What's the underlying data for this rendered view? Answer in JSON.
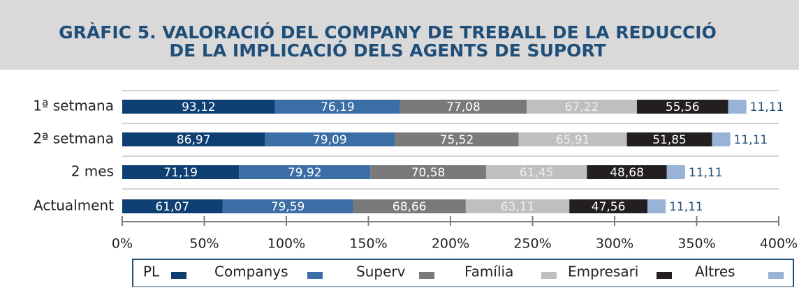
{
  "chart_data": {
    "type": "stacked-bar-horizontal",
    "title": [
      "GRÀFIC 5. VALORACIÓ DEL COMPANY DE TREBALL DE LA REDUCCIÓ",
      "DE LA IMPLICACIÓ DELS AGENTS DE SUPORT"
    ],
    "categories": [
      "1ª setmana",
      "2ª setmana",
      "2 mes",
      "Actualment"
    ],
    "series": [
      {
        "name": "PL",
        "color": "#0d3f73",
        "values": [
          93.12,
          86.97,
          71.19,
          61.07
        ],
        "value_labels": [
          "93,12",
          "86,97",
          "71,19",
          "61,07"
        ]
      },
      {
        "name": "Companys",
        "color": "#3a6ea5",
        "values": [
          76.19,
          79.09,
          79.92,
          79.59
        ],
        "value_labels": [
          "76,19",
          "79,09",
          "79,92",
          "79,59"
        ]
      },
      {
        "name": "Superv",
        "color": "#7a7a7a",
        "values": [
          77.08,
          75.52,
          70.58,
          68.66
        ],
        "value_labels": [
          "77,08",
          "75,52",
          "70,58",
          "68,66"
        ]
      },
      {
        "name": "Família",
        "color": "#bfbfbf",
        "values": [
          67.22,
          65.91,
          61.45,
          63.11
        ],
        "value_labels": [
          "67,22",
          "65,91",
          "61,45",
          "63,11"
        ]
      },
      {
        "name": "Empresari",
        "color": "#231f20",
        "values": [
          55.56,
          51.85,
          48.68,
          47.56
        ],
        "value_labels": [
          "55,56",
          "51,85",
          "48,68",
          "47,56"
        ]
      },
      {
        "name": "Altres",
        "color": "#98b3d6",
        "values": [
          11.11,
          11.11,
          11.11,
          11.11
        ],
        "value_labels": [
          "11,11",
          "11,11",
          "11,11",
          "11,11"
        ]
      }
    ],
    "xlim": [
      0,
      400
    ],
    "xticks": [
      {
        "value": 0,
        "label": "0%"
      },
      {
        "value": 50,
        "label": "50%"
      },
      {
        "value": 100,
        "label": "100%"
      },
      {
        "value": 150,
        "label": "150%"
      },
      {
        "value": 200,
        "label": "200%"
      },
      {
        "value": 250,
        "label": "250%"
      },
      {
        "value": 300,
        "label": "300%"
      },
      {
        "value": 350,
        "label": "350%"
      },
      {
        "value": 400,
        "label": "400%"
      }
    ],
    "legend": "bottom"
  }
}
